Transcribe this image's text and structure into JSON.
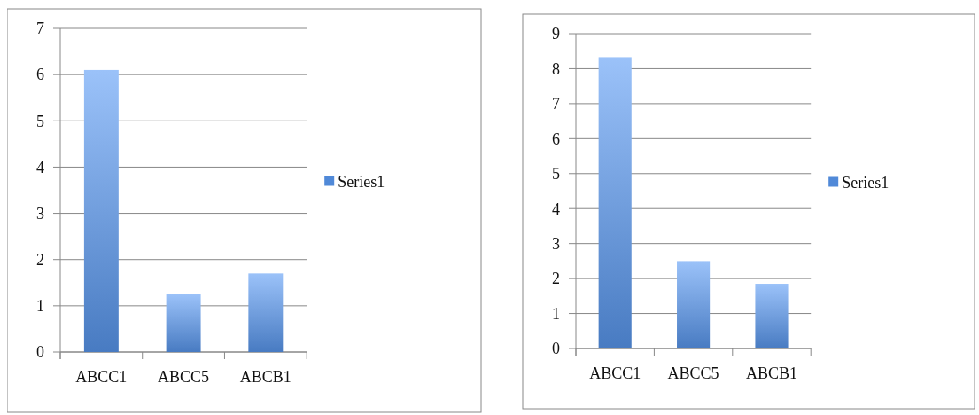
{
  "chart_data": [
    {
      "type": "bar",
      "categories": [
        "ABCC1",
        "ABCC5",
        "ABCB1"
      ],
      "series": [
        {
          "name": "Series1",
          "color": "#5089d8",
          "values": [
            6.1,
            1.25,
            1.7
          ]
        }
      ],
      "ylim": [
        0,
        7
      ],
      "yticks": [
        0,
        1,
        2,
        3,
        4,
        5,
        6,
        7
      ],
      "grid": "y",
      "legend": "right"
    },
    {
      "type": "bar",
      "categories": [
        "ABCC1",
        "ABCC5",
        "ABCB1"
      ],
      "series": [
        {
          "name": "Series1",
          "color": "#5089d8",
          "values": [
            8.33,
            2.5,
            1.85
          ]
        }
      ],
      "ylim": [
        0,
        9
      ],
      "yticks": [
        0,
        1,
        2,
        3,
        4,
        5,
        6,
        7,
        8,
        9
      ],
      "grid": "y",
      "legend": "right"
    }
  ]
}
